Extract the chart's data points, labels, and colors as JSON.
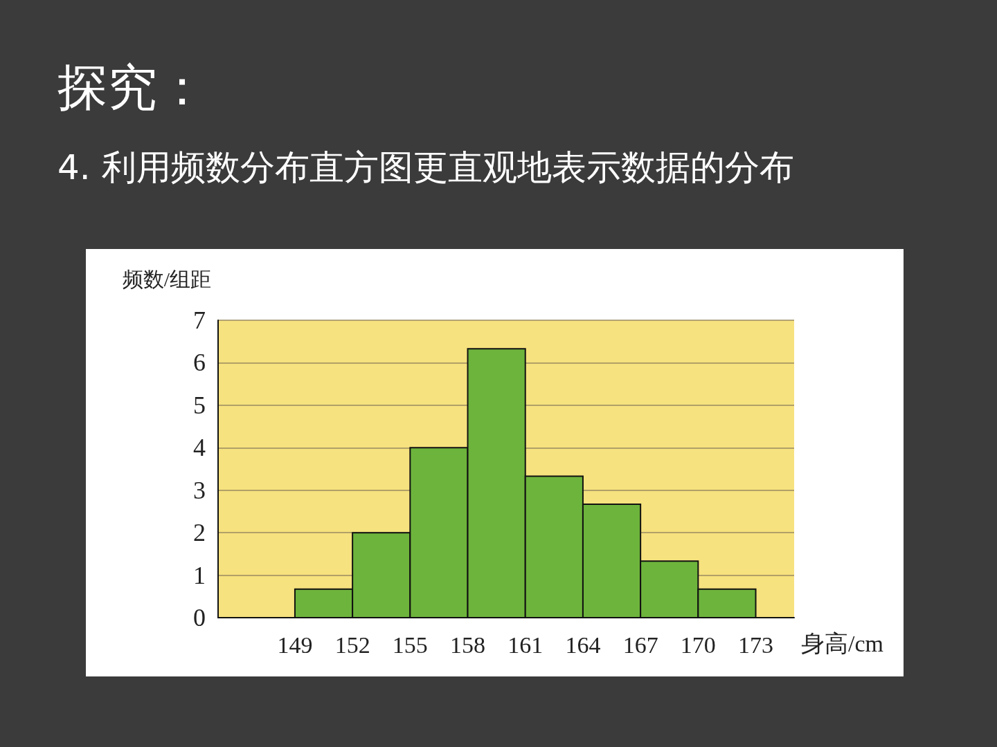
{
  "chart_data": {
    "type": "histogram",
    "title": "探究：",
    "subtitle": "4. 利用频数分布直方图更直观地表示数据的分布",
    "xlabel": "身高/cm",
    "ylabel": "频数/组距",
    "bins": [
      149,
      152,
      155,
      158,
      161,
      164,
      167,
      170,
      173
    ],
    "values": [
      0.67,
      2,
      4,
      6.33,
      3.33,
      2.67,
      1.33,
      0.67
    ],
    "color": "#6db43c",
    "xlim": [
      145,
      175
    ],
    "xticks": [
      149,
      152,
      155,
      158,
      161,
      164,
      167,
      170,
      173
    ],
    "ylim": [
      0,
      7
    ],
    "yticks": [
      0,
      1,
      2,
      3,
      4,
      5,
      6,
      7
    ],
    "grid": "y"
  }
}
